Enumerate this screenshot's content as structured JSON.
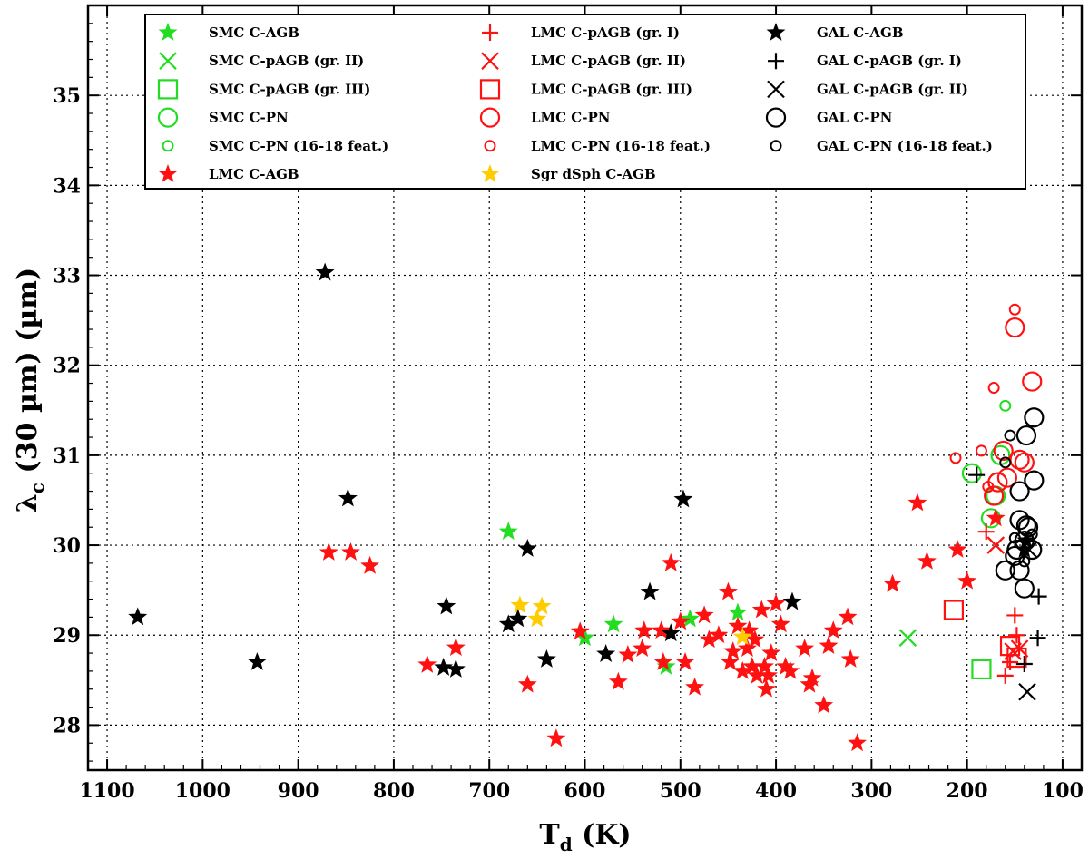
{
  "chart_data": {
    "type": "scatter",
    "title": "",
    "xlabel_main": "T",
    "xlabel_sub": "d",
    "xlabel_unit": " (K)",
    "ylabel_main": "λ",
    "ylabel_sub": "c",
    "ylabel_unit": " (30 µm) (µm)",
    "xlim": [
      1120,
      80
    ],
    "ylim": [
      27.5,
      36
    ],
    "grid": true,
    "legend_position": "top",
    "xticks": [
      1100,
      1000,
      900,
      800,
      700,
      600,
      500,
      400,
      300,
      200,
      100
    ],
    "yticks": [
      28,
      29,
      30,
      31,
      32,
      33,
      34,
      35
    ],
    "colors": {
      "smc": "#22dd22",
      "lmc": "#ff1111",
      "gal": "#000000",
      "sgr": "#ffcc00"
    },
    "series": [
      {
        "name": "SMC C-AGB",
        "marker": "star",
        "color": "#22dd22",
        "points": [
          [
            680,
            30.15
          ],
          [
            570,
            29.12
          ],
          [
            600,
            28.97
          ],
          [
            490,
            29.18
          ],
          [
            440,
            29.25
          ],
          [
            515,
            28.65
          ]
        ]
      },
      {
        "name": "SMC C-pAGB (gr. II)",
        "marker": "x",
        "color": "#22dd22",
        "points": [
          [
            262,
            28.97
          ]
        ]
      },
      {
        "name": "SMC C-pAGB (gr. III)",
        "marker": "square",
        "color": "#22dd22",
        "points": [
          [
            185,
            28.62
          ]
        ]
      },
      {
        "name": "SMC C-PN",
        "marker": "circle",
        "color": "#22dd22",
        "points": [
          [
            195,
            30.8
          ],
          [
            170,
            30.55
          ],
          [
            175,
            30.3
          ],
          [
            165,
            31.0
          ]
        ]
      },
      {
        "name": "SMC C-PN (16-18 feat.)",
        "marker": "smallcircle",
        "color": "#22dd22",
        "points": [
          [
            160,
            31.55
          ]
        ]
      },
      {
        "name": "LMC C-AGB",
        "marker": "star",
        "color": "#ff1111",
        "points": [
          [
            868,
            29.92
          ],
          [
            845,
            29.92
          ],
          [
            825,
            29.77
          ],
          [
            765,
            28.67
          ],
          [
            735,
            28.86
          ],
          [
            660,
            28.45
          ],
          [
            630,
            27.85
          ],
          [
            605,
            29.04
          ],
          [
            565,
            28.48
          ],
          [
            555,
            28.78
          ],
          [
            540,
            28.85
          ],
          [
            538,
            29.05
          ],
          [
            520,
            29.05
          ],
          [
            518,
            28.7
          ],
          [
            510,
            29.8
          ],
          [
            500,
            29.15
          ],
          [
            495,
            28.7
          ],
          [
            485,
            28.42
          ],
          [
            475,
            29.22
          ],
          [
            470,
            28.95
          ],
          [
            460,
            29.0
          ],
          [
            450,
            29.48
          ],
          [
            448,
            28.7
          ],
          [
            445,
            28.82
          ],
          [
            440,
            29.1
          ],
          [
            435,
            28.6
          ],
          [
            430,
            28.85
          ],
          [
            428,
            29.05
          ],
          [
            425,
            28.65
          ],
          [
            422,
            28.95
          ],
          [
            420,
            28.55
          ],
          [
            415,
            29.28
          ],
          [
            412,
            28.65
          ],
          [
            410,
            28.4
          ],
          [
            408,
            28.55
          ],
          [
            405,
            28.8
          ],
          [
            400,
            29.35
          ],
          [
            395,
            29.12
          ],
          [
            390,
            28.65
          ],
          [
            385,
            28.6
          ],
          [
            370,
            28.85
          ],
          [
            365,
            28.45
          ],
          [
            362,
            28.52
          ],
          [
            350,
            28.22
          ],
          [
            345,
            28.88
          ],
          [
            340,
            29.05
          ],
          [
            325,
            29.2
          ],
          [
            322,
            28.73
          ],
          [
            315,
            27.8
          ],
          [
            278,
            29.57
          ],
          [
            252,
            30.47
          ],
          [
            242,
            29.82
          ],
          [
            210,
            29.95
          ],
          [
            200,
            29.6
          ],
          [
            170,
            30.3
          ]
        ]
      },
      {
        "name": "LMC C-pAGB (gr. I)",
        "marker": "plus",
        "color": "#ff1111",
        "points": [
          [
            180,
            30.15
          ],
          [
            150,
            29.22
          ],
          [
            148,
            29.0
          ],
          [
            160,
            28.55
          ],
          [
            155,
            28.7
          ]
        ]
      },
      {
        "name": "LMC C-pAGB (gr. II)",
        "marker": "x",
        "color": "#ff1111",
        "points": [
          [
            170,
            30.0
          ],
          [
            152,
            28.82
          ],
          [
            145,
            28.85
          ]
        ]
      },
      {
        "name": "LMC C-pAGB (gr. III)",
        "marker": "square",
        "color": "#ff1111",
        "points": [
          [
            214,
            29.28
          ],
          [
            155,
            28.88
          ],
          [
            148,
            28.75
          ]
        ]
      },
      {
        "name": "LMC C-PN",
        "marker": "circle",
        "color": "#ff1111",
        "points": [
          [
            150,
            32.42
          ],
          [
            132,
            31.82
          ],
          [
            168,
            30.7
          ],
          [
            162,
            31.05
          ],
          [
            145,
            30.95
          ],
          [
            140,
            30.92
          ],
          [
            158,
            30.75
          ],
          [
            172,
            30.55
          ]
        ]
      },
      {
        "name": "LMC C-PN (16-18 feat.)",
        "marker": "smallcircle",
        "color": "#ff1111",
        "points": [
          [
            150,
            32.62
          ],
          [
            172,
            31.75
          ],
          [
            212,
            30.97
          ],
          [
            185,
            31.05
          ],
          [
            178,
            30.65
          ]
        ]
      },
      {
        "name": "Sgr dSph C-AGB",
        "marker": "star",
        "color": "#ffcc00",
        "points": [
          [
            668,
            29.33
          ],
          [
            645,
            29.32
          ],
          [
            650,
            29.18
          ],
          [
            435,
            28.98
          ]
        ]
      },
      {
        "name": "GAL C-AGB",
        "marker": "star",
        "color": "#000000",
        "points": [
          [
            1068,
            29.2
          ],
          [
            943,
            28.7
          ],
          [
            872,
            33.03
          ],
          [
            848,
            30.52
          ],
          [
            745,
            29.32
          ],
          [
            748,
            28.64
          ],
          [
            735,
            28.62
          ],
          [
            680,
            29.12
          ],
          [
            670,
            29.18
          ],
          [
            660,
            29.96
          ],
          [
            640,
            28.73
          ],
          [
            578,
            28.79
          ],
          [
            532,
            29.48
          ],
          [
            510,
            29.02
          ],
          [
            497,
            30.51
          ],
          [
            383,
            29.37
          ],
          [
            140,
            29.95
          ],
          [
            138,
            30.05
          ]
        ]
      },
      {
        "name": "GAL C-pAGB (gr. I)",
        "marker": "plus",
        "color": "#000000",
        "points": [
          [
            190,
            30.78
          ],
          [
            125,
            29.43
          ],
          [
            126,
            28.97
          ],
          [
            140,
            28.68
          ]
        ]
      },
      {
        "name": "GAL C-pAGB (gr. II)",
        "marker": "x",
        "color": "#000000",
        "points": [
          [
            137,
            28.37
          ],
          [
            135,
            29.95
          ]
        ]
      },
      {
        "name": "GAL C-PN",
        "marker": "circle",
        "color": "#000000",
        "points": [
          [
            130,
            31.42
          ],
          [
            138,
            31.22
          ],
          [
            130,
            30.72
          ],
          [
            145,
            30.6
          ],
          [
            145,
            30.28
          ],
          [
            136,
            30.2
          ],
          [
            140,
            30.05
          ],
          [
            132,
            29.95
          ],
          [
            150,
            29.88
          ],
          [
            160,
            29.72
          ],
          [
            145,
            29.72
          ],
          [
            140,
            29.52
          ],
          [
            138,
            30.22
          ],
          [
            148,
            29.95
          ]
        ]
      },
      {
        "name": "GAL C-PN (16-18 feat.)",
        "marker": "smallcircle",
        "color": "#000000",
        "points": [
          [
            155,
            31.22
          ],
          [
            160,
            30.92
          ],
          [
            132,
            30.12
          ],
          [
            140,
            29.82
          ],
          [
            150,
            30.08
          ]
        ]
      }
    ],
    "legend_order": [
      [
        "SMC C-AGB",
        "SMC C-pAGB (gr. II)",
        "SMC C-pAGB (gr. III)",
        "SMC C-PN",
        "SMC C-PN (16-18 feat.)",
        "LMC C-AGB"
      ],
      [
        "LMC C-pAGB (gr. I)",
        "LMC C-pAGB (gr. II)",
        "LMC C-pAGB (gr. III)",
        "LMC C-PN",
        "LMC C-PN (16-18 feat.)",
        "Sgr dSph C-AGB"
      ],
      [
        "GAL C-AGB",
        "GAL C-pAGB (gr. I)",
        "GAL C-pAGB (gr. II)",
        "GAL C-PN",
        "GAL C-PN (16-18 feat.)"
      ]
    ]
  }
}
